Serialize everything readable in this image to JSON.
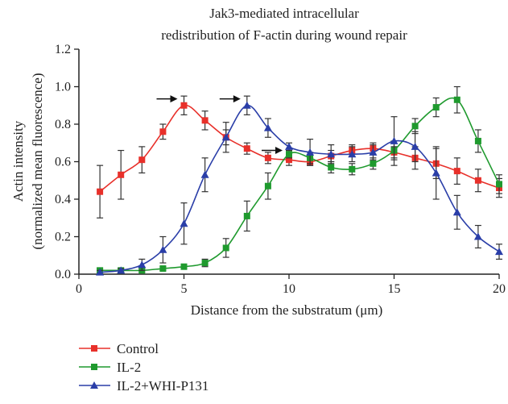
{
  "chart_data": {
    "type": "line",
    "title": [
      "Jak3-mediated intracellular",
      "redistribution of F-actin during wound repair"
    ],
    "xlabel": "Distance from the substratum (μm)",
    "ylabel": [
      "Actin intensity",
      "(normalized mean fluorescence)"
    ],
    "xlim": [
      0,
      20
    ],
    "ylim": [
      0,
      1.2
    ],
    "xticks": [
      0,
      5,
      10,
      15,
      20
    ],
    "yticks": [
      0.0,
      0.2,
      0.4,
      0.6,
      0.8,
      1.0,
      1.2
    ],
    "xtick_labels": [
      "0",
      "5",
      "10",
      "15",
      "20"
    ],
    "ytick_labels": [
      "0.0",
      "0.2",
      "0.4",
      "0.6",
      "0.8",
      "1.0",
      "1.2"
    ],
    "legend_position": "bottom-left",
    "x": [
      1,
      2,
      3,
      4,
      5,
      6,
      7,
      8,
      9,
      10,
      11,
      12,
      13,
      14,
      15,
      16,
      17,
      18,
      19,
      20
    ],
    "series": [
      {
        "name": "Control",
        "color": "#e8302a",
        "marker": "square",
        "values": [
          0.44,
          0.53,
          0.61,
          0.76,
          0.9,
          0.82,
          0.73,
          0.67,
          0.62,
          0.61,
          0.6,
          0.63,
          0.66,
          0.67,
          0.65,
          0.62,
          0.59,
          0.55,
          0.5,
          0.46
        ],
        "errors": [
          0.14,
          0.13,
          0.07,
          0.04,
          0.05,
          0.05,
          0.04,
          0.03,
          0.03,
          0.03,
          0.02,
          0.03,
          0.03,
          0.03,
          0.03,
          0.06,
          0.08,
          0.07,
          0.06,
          0.05
        ]
      },
      {
        "name": "IL-2",
        "color": "#1f9a2e",
        "marker": "square",
        "values": [
          0.02,
          0.02,
          0.02,
          0.03,
          0.04,
          0.06,
          0.14,
          0.31,
          0.47,
          0.64,
          0.62,
          0.57,
          0.56,
          0.59,
          0.66,
          0.79,
          0.89,
          0.93,
          0.71,
          0.48
        ],
        "errors": [
          0.01,
          0.01,
          0.01,
          0.01,
          0.01,
          0.02,
          0.05,
          0.08,
          0.07,
          0.02,
          0.03,
          0.03,
          0.03,
          0.03,
          0.05,
          0.04,
          0.05,
          0.07,
          0.06,
          0.05
        ]
      },
      {
        "name": "IL-2+WHI-P131",
        "color": "#2a3ea8",
        "marker": "triangle",
        "values": [
          0.01,
          0.02,
          0.05,
          0.13,
          0.27,
          0.53,
          0.73,
          0.9,
          0.78,
          0.68,
          0.65,
          0.64,
          0.64,
          0.65,
          0.71,
          0.68,
          0.54,
          0.33,
          0.2,
          0.12
        ],
        "errors": [
          0.01,
          0.01,
          0.03,
          0.07,
          0.11,
          0.09,
          0.08,
          0.05,
          0.05,
          0.02,
          0.07,
          0.05,
          0.04,
          0.04,
          0.13,
          0.08,
          0.14,
          0.09,
          0.06,
          0.04
        ]
      }
    ],
    "annotations": [
      {
        "type": "arrow",
        "at_x": 5,
        "at_y": 0.935
      },
      {
        "type": "arrow",
        "at_x": 8,
        "at_y": 0.935
      },
      {
        "type": "arrow",
        "at_x": 10,
        "at_y": 0.66
      }
    ]
  }
}
